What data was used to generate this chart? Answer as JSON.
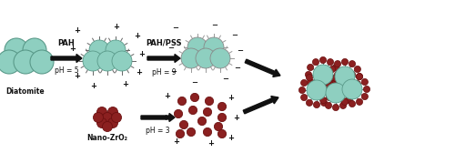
{
  "fig_width": 5.0,
  "fig_height": 1.79,
  "dpi": 100,
  "bg_color": "#ffffff",
  "diatomite_color": "#8ecfc0",
  "diatomite_edge": "#5a9a8a",
  "nano_zro2_color": "#8b2020",
  "nano_zro2_edge": "#6b1010",
  "spike_color": "#666666",
  "arrow_color": "#111111",
  "text_color": "#111111",
  "xlim": [
    0,
    5.0
  ],
  "ylim": [
    0,
    1.79
  ],
  "labels": {
    "diatomite": "Diatomite",
    "nano_zro2": "Nano-ZrO₂",
    "pah": "PAH",
    "ph5": "pH = 5",
    "pah_pss": "PAH/PSS",
    "ph9": "pH = 9",
    "ph3": "pH = 3"
  }
}
